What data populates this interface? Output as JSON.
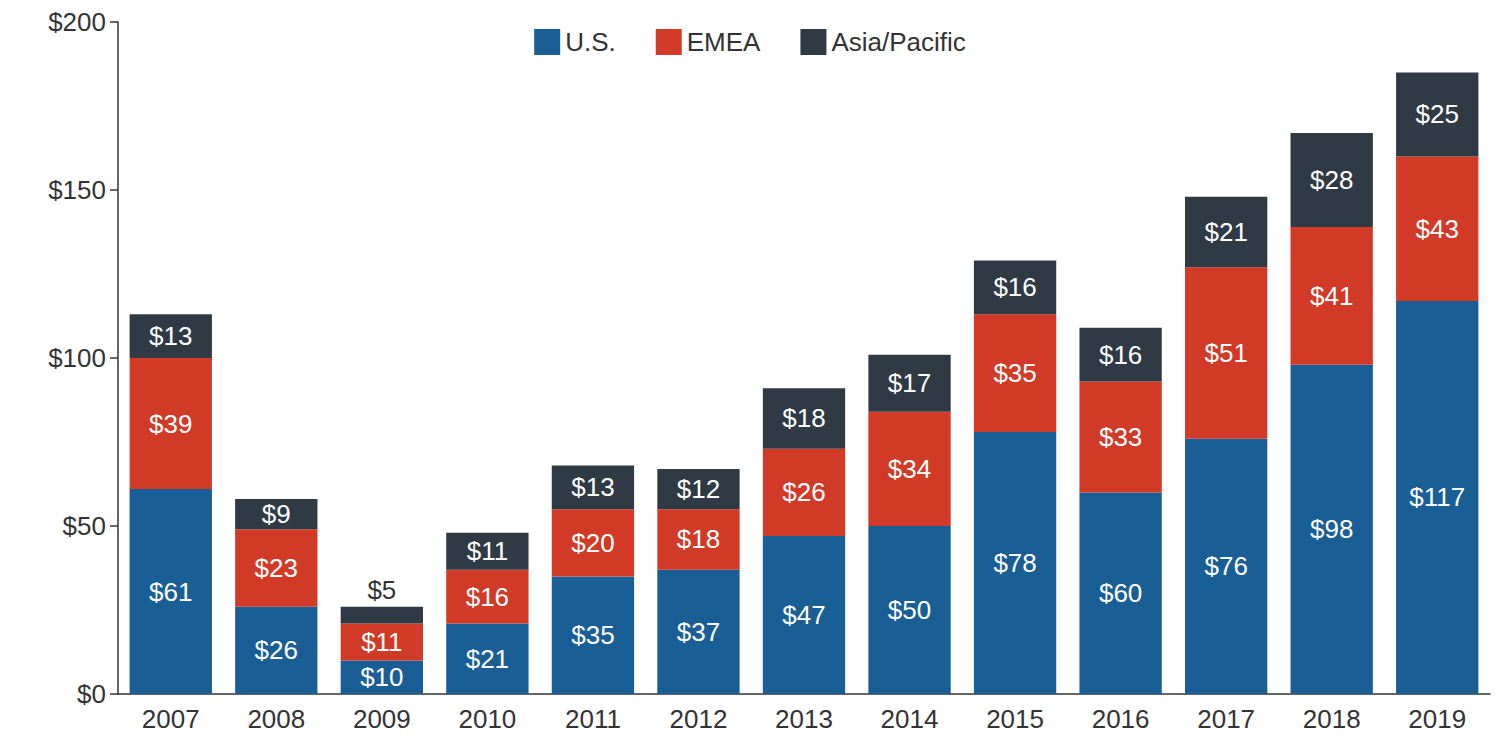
{
  "chart_data": {
    "type": "bar",
    "stacked": true,
    "data_labels": true,
    "grid": false,
    "legend": "top",
    "categories": [
      "2007",
      "2008",
      "2009",
      "2010",
      "2011",
      "2012",
      "2013",
      "2014",
      "2015",
      "2016",
      "2017",
      "2018",
      "2019"
    ],
    "series": [
      {
        "name": "U.S.",
        "color": "#1a5e96",
        "values": [
          61,
          26,
          10,
          21,
          35,
          37,
          47,
          50,
          78,
          60,
          76,
          98,
          117
        ],
        "value_labels": [
          "$61",
          "$26",
          "$10",
          "$21",
          "$35",
          "$37",
          "$47",
          "$50",
          "$78",
          "$60",
          "$76",
          "$98",
          "$117"
        ]
      },
      {
        "name": "EMEA",
        "color": "#d13a26",
        "values": [
          39,
          23,
          11,
          16,
          20,
          18,
          26,
          34,
          35,
          33,
          51,
          41,
          43
        ],
        "value_labels": [
          "$39",
          "$23",
          "$11",
          "$16",
          "$20",
          "$18",
          "$26",
          "$34",
          "$35",
          "$33",
          "$51",
          "$41",
          "$43"
        ]
      },
      {
        "name": "Asia/Pacific",
        "color": "#2f3a45",
        "values": [
          13,
          9,
          5,
          11,
          13,
          12,
          18,
          17,
          16,
          16,
          21,
          28,
          25
        ],
        "value_labels": [
          "$13",
          "$9",
          "$5",
          "$11",
          "$13",
          "$12",
          "$18",
          "$17",
          "$16",
          "$16",
          "$21",
          "$28",
          "$25"
        ]
      }
    ],
    "ylim": [
      0,
      200
    ],
    "yticks": [
      {
        "value": 0,
        "label": "$0"
      },
      {
        "value": 50,
        "label": "$50"
      },
      {
        "value": 100,
        "label": "$100"
      },
      {
        "value": 150,
        "label": "$150"
      },
      {
        "value": 200,
        "label": "$200"
      }
    ]
  }
}
